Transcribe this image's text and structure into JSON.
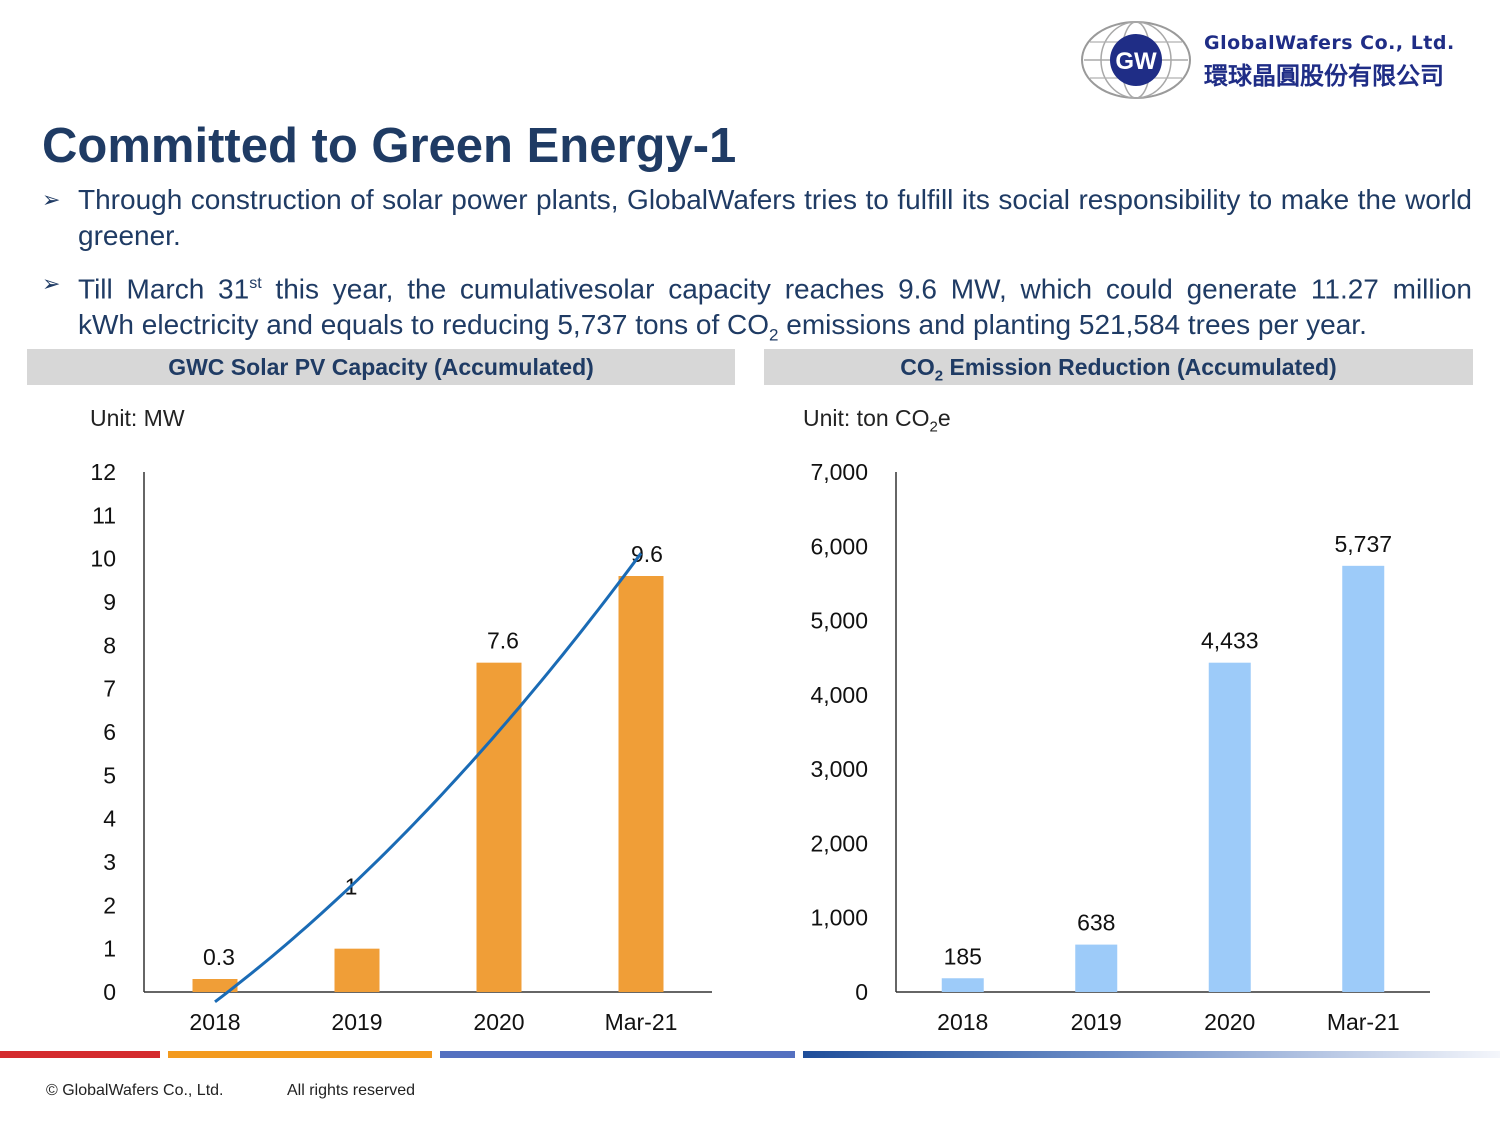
{
  "logo": {
    "mark": "GW",
    "name_en": "GlobalWafers Co., Ltd.",
    "name_zh": "環球晶圓股份有限公司"
  },
  "title": "Committed to Green Energy-1",
  "bullets": [
    {
      "icon": "arrow-bullet-icon",
      "text": "Through construction of solar power plants, GlobalWafers tries to fulfill its social responsibility to make the world greener."
    },
    {
      "icon": "arrow-bullet-icon",
      "line1_a": "Till March 31",
      "line1_sup": "st",
      "line1_b": " this year, the cumulativesolar capacity reaches 9.6 MW, which could generate 11.27 million",
      "line2_a": "kWh electricity and equals to reducing 5,737  tons of CO",
      "line2_sub": "2",
      "line2_b": " emissions and planting 521,584  trees per year."
    }
  ],
  "colors": {
    "title": "#1f3b64",
    "header_bg": "#d7d7d7",
    "solar_bar": "#f09e37",
    "trend_line": "#1a6bb5",
    "co2_bar": "#9dcbf9",
    "stripe_red": "#d42a2e",
    "stripe_orange": "#f39a1e",
    "stripe_blue": "#5470c0"
  },
  "chart_data": [
    {
      "type": "bar",
      "title": "GWC Solar PV Capacity (Accumulated)",
      "unit_label": "Unit: MW",
      "categories": [
        "2018",
        "2019",
        "2020",
        "Mar-21"
      ],
      "values": [
        0.3,
        1,
        7.6,
        9.6
      ],
      "data_labels": [
        "0.3",
        "1",
        "7.6",
        "9.6"
      ],
      "ylim": [
        0,
        12
      ],
      "yticks": [
        "0",
        "1",
        "2",
        "3",
        "4",
        "5",
        "6",
        "7",
        "8",
        "9",
        "10",
        "11",
        "12"
      ],
      "trendline": "polynomial",
      "grid": false,
      "legend": "none"
    },
    {
      "type": "bar",
      "title_a": "CO",
      "title_sub": "2",
      "title_b": " Emission Reduction (Accumulated)",
      "unit_a": "Unit: ton CO",
      "unit_sub": "2",
      "unit_b": "e",
      "categories": [
        "2018",
        "2019",
        "2020",
        "Mar-21"
      ],
      "values": [
        185,
        638,
        4433,
        5737
      ],
      "data_labels": [
        "185",
        "638",
        "4,433",
        "5,737"
      ],
      "ylim": [
        0,
        7000
      ],
      "yticks": [
        "0",
        "1,000",
        "2,000",
        "3,000",
        "4,000",
        "5,000",
        "6,000",
        "7,000"
      ],
      "grid": false,
      "legend": "none"
    }
  ],
  "footer": {
    "copyright": "© GlobalWafers Co., Ltd.",
    "rights": "All rights reserved"
  }
}
